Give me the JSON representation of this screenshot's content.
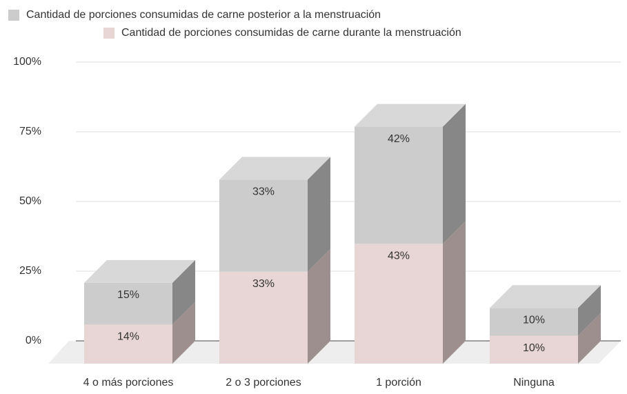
{
  "chart_data": {
    "type": "bar3d_stacked",
    "categories": [
      "4 o más porciones",
      "2 o 3 porciones",
      "1 porción",
      "Ninguna"
    ],
    "series": [
      {
        "name": "Cantidad de porciones consumidas de carne durante la menstruación",
        "color": "#e8d6d6",
        "side_color": "#9e8f8f",
        "values": [
          14,
          33,
          43,
          10
        ],
        "value_labels": [
          "14%",
          "33%",
          "43%",
          "10%"
        ]
      },
      {
        "name": "Cantidad de porciones consumidas de carne posterior a la menstruación",
        "color": "#cccccc",
        "side_color": "#878787",
        "top_color": "#d8d8d8",
        "values": [
          15,
          33,
          42,
          10
        ],
        "value_labels": [
          "15%",
          "33%",
          "42%",
          "10%"
        ]
      }
    ],
    "ylim": [
      0,
      100
    ],
    "yticks": [
      {
        "value": 0,
        "label": "0%"
      },
      {
        "value": 25,
        "label": "25%"
      },
      {
        "value": 50,
        "label": "50%"
      },
      {
        "value": 75,
        "label": "75%"
      },
      {
        "value": 100,
        "label": "100%"
      }
    ],
    "grid": true
  }
}
